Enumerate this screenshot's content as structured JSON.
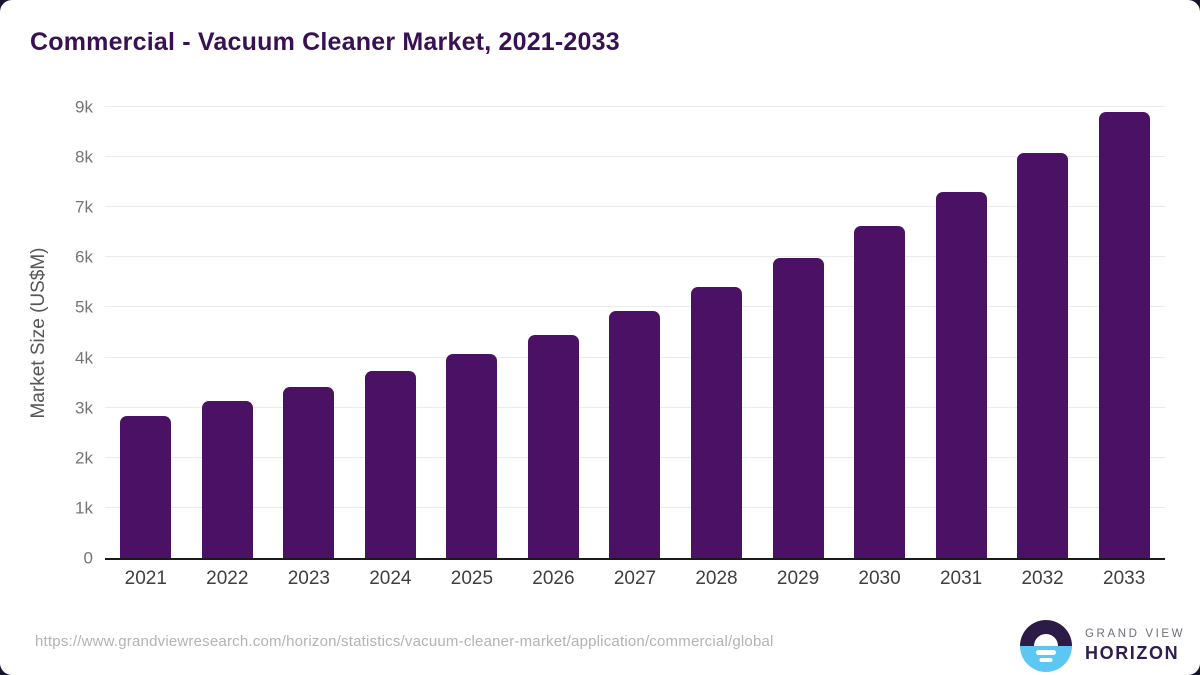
{
  "title": "Commercial - Vacuum Cleaner Market, 2021-2033",
  "colors": {
    "bar": "#4a1164",
    "title": "#371153",
    "gridline": "#ebebeb",
    "axis_line": "#1a1a1a",
    "y_tick_label": "#757575",
    "x_tick_label": "#3f3f3f",
    "y_axis_title": "#565656",
    "footer_url": "#b3b3b3",
    "logo_dark_purple": "#2d1b47",
    "logo_light_blue": "#5cc8f1",
    "logo_name_text": "#716c7c",
    "logo_wordmark_text": "#2f1d4f"
  },
  "chart_data": {
    "type": "bar",
    "title": "Commercial - Vacuum Cleaner Market, 2021-2033",
    "categories": [
      "2021",
      "2022",
      "2023",
      "2024",
      "2025",
      "2026",
      "2027",
      "2028",
      "2029",
      "2030",
      "2031",
      "2032",
      "2033"
    ],
    "values": [
      2830,
      3130,
      3410,
      3730,
      4080,
      4460,
      4930,
      5400,
      5980,
      6620,
      7310,
      8080,
      8910
    ],
    "units": "US$M",
    "xlabel": "",
    "ylabel": "Market Size (US$M)",
    "ylim": [
      0,
      9000
    ],
    "yticks": [
      0,
      1000,
      2000,
      3000,
      4000,
      5000,
      6000,
      7000,
      8000,
      9000
    ],
    "ytick_labels": [
      "0",
      "1k",
      "2k",
      "3k",
      "4k",
      "5k",
      "6k",
      "7k",
      "8k",
      "9k"
    ],
    "grid": "horizontal",
    "legend": "none",
    "bar_color": "#4a1164"
  },
  "footer": {
    "url": "https://www.grandviewresearch.com/horizon/statistics/vacuum-cleaner-market/application/commercial/global",
    "logo": {
      "icon": "horizon-sunrise-icon",
      "name_top": "GRAND VIEW",
      "name_bottom": "HORIZON"
    }
  }
}
